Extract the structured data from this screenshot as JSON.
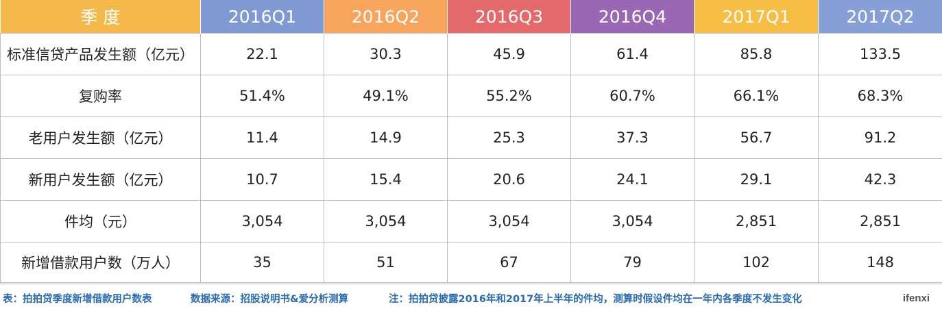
{
  "table": {
    "headers": [
      {
        "label": "季  度",
        "color": "#f6b84a"
      },
      {
        "label": "2016Q1",
        "color": "#7f9ad3"
      },
      {
        "label": "2016Q2",
        "color": "#f7a55c"
      },
      {
        "label": "2016Q3",
        "color": "#e4696b"
      },
      {
        "label": "2016Q4",
        "color": "#9a67b5"
      },
      {
        "label": "2017Q1",
        "color": "#f6be45"
      },
      {
        "label": "2017Q2",
        "color": "#869fd6"
      }
    ],
    "rows": [
      {
        "label": "标准信贷产品发生额（亿元）",
        "values": [
          "22.1",
          "30.3",
          "45.9",
          "61.4",
          "85.8",
          "133.5"
        ]
      },
      {
        "label": "复购率",
        "values": [
          "51.4%",
          "49.1%",
          "55.2%",
          "60.7%",
          "66.1%",
          "68.3%"
        ]
      },
      {
        "label": "老用户发生额（亿元）",
        "values": [
          "11.4",
          "14.9",
          "25.3",
          "37.3",
          "56.7",
          "91.2"
        ]
      },
      {
        "label": "新用户发生额（亿元）",
        "values": [
          "10.7",
          "15.4",
          "20.6",
          "24.1",
          "29.1",
          "42.3"
        ]
      },
      {
        "label": "件均（元）",
        "values": [
          "3,054",
          "3,054",
          "3,054",
          "3,054",
          "2,851",
          "2,851"
        ]
      },
      {
        "label": "新增借款用户数（万人）",
        "values": [
          "35",
          "51",
          "67",
          "79",
          "102",
          "148"
        ]
      }
    ]
  },
  "footer": {
    "caption": "表：拍拍贷季度新增借款用户数表",
    "source": "数据来源：招股说明书&爱分析测算",
    "note": "注：拍拍贷披露2016年和2017年上半年的件均，测算时假设件均在一年内各季度不发生变化",
    "logo": "ifenxi"
  }
}
